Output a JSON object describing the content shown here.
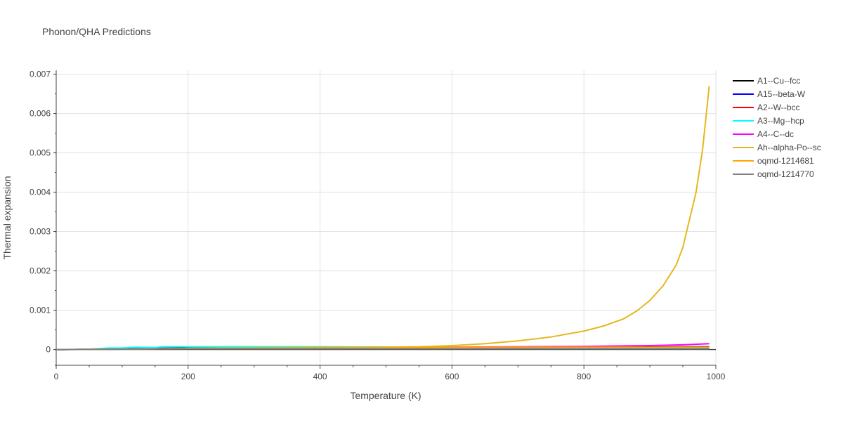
{
  "chart_data": {
    "type": "line",
    "title": "Phonon/QHA Predictions",
    "xlabel": "Temperature (K)",
    "ylabel": "Thermal expansion",
    "xlim": [
      0,
      1000
    ],
    "ylim": [
      -0.0004,
      0.0071
    ],
    "x_ticks": [
      0,
      200,
      400,
      600,
      800,
      1000
    ],
    "y_ticks": [
      0,
      0.001,
      0.002,
      0.003,
      0.004,
      0.005,
      0.006,
      0.007
    ],
    "x_tick_labels": [
      "0",
      "200",
      "400",
      "600",
      "800",
      "1000"
    ],
    "y_tick_labels": [
      "0",
      "0.001",
      "0.002",
      "0.003",
      "0.004",
      "0.005",
      "0.006",
      "0.007"
    ],
    "grid": true,
    "legend_position": "right",
    "series": [
      {
        "name": "A1--Cu--fcc",
        "color": "#000000",
        "x": [
          0,
          50,
          100,
          150,
          200,
          300,
          400,
          500,
          600,
          700,
          800,
          900,
          990
        ],
        "y": [
          0,
          5e-06,
          2e-05,
          3e-05,
          4e-05,
          4.5e-05,
          5e-05,
          5e-05,
          5.5e-05,
          6e-05,
          6e-05,
          6.5e-05,
          7e-05
        ]
      },
      {
        "name": "A15--beta-W",
        "color": "#0000ff",
        "x": [
          0,
          50,
          100,
          150,
          200,
          300,
          400,
          500,
          600,
          700,
          800,
          900,
          990
        ],
        "y": [
          0,
          3e-06,
          1.5e-05,
          2.5e-05,
          3e-05,
          3.5e-05,
          4e-05,
          4e-05,
          4.5e-05,
          5e-05,
          5e-05,
          5.5e-05,
          6e-05
        ]
      },
      {
        "name": "A2--W--bcc",
        "color": "#ff0000",
        "x": [
          0,
          50,
          100,
          150,
          200,
          300,
          400,
          500,
          600,
          700,
          800,
          900,
          990
        ],
        "y": [
          0,
          3e-06,
          1e-05,
          2e-05,
          2.5e-05,
          3e-05,
          3.5e-05,
          4e-05,
          4e-05,
          4.5e-05,
          5e-05,
          5e-05,
          5.5e-05
        ]
      },
      {
        "name": "A3--Mg--hcp",
        "color": "#00ffff",
        "x": [
          0,
          50,
          80,
          100,
          120,
          150,
          160,
          200,
          300,
          400,
          500,
          600,
          700,
          800,
          900,
          990
        ],
        "y": [
          0,
          8e-06,
          4e-05,
          4e-05,
          6e-05,
          5e-05,
          7e-05,
          7e-05,
          7e-05,
          7e-05,
          6.5e-05,
          6e-05,
          6e-05,
          5.5e-05,
          5e-05,
          5e-05
        ]
      },
      {
        "name": "A4--C--dc",
        "color": "#ff00ff",
        "x": [
          0,
          50,
          100,
          150,
          200,
          300,
          400,
          500,
          600,
          700,
          800,
          850,
          900,
          950,
          990
        ],
        "y": [
          0,
          3e-06,
          1e-05,
          1.5e-05,
          2e-05,
          3e-05,
          4e-05,
          5e-05,
          6e-05,
          7e-05,
          8e-05,
          9e-05,
          0.0001,
          0.00012,
          0.00015
        ]
      },
      {
        "name": "Ah--alpha-Po--sc",
        "color": "#e6b71e",
        "x": [
          0,
          100,
          200,
          300,
          400,
          500,
          550,
          600,
          650,
          700,
          750,
          800,
          830,
          860,
          880,
          900,
          920,
          940,
          950,
          960,
          970,
          980,
          990
        ],
        "y": [
          0,
          1e-05,
          3e-05,
          4e-05,
          5e-05,
          6e-05,
          7e-05,
          0.0001,
          0.00015,
          0.00022,
          0.00032,
          0.00047,
          0.0006,
          0.00078,
          0.00098,
          0.00125,
          0.00162,
          0.00215,
          0.0026,
          0.0033,
          0.004,
          0.0051,
          0.0067
        ]
      },
      {
        "name": "oqmd-1214681",
        "color": "#ffa500",
        "x": [
          0,
          100,
          200,
          300,
          400,
          500,
          600,
          700,
          800,
          900,
          990
        ],
        "y": [
          0,
          1e-05,
          3e-05,
          4e-05,
          5e-05,
          5e-05,
          5.5e-05,
          6e-05,
          6e-05,
          6e-05,
          6e-05
        ]
      },
      {
        "name": "oqmd-1214770",
        "color": "#808080",
        "x": [
          0,
          100,
          200,
          300,
          400,
          500,
          600,
          700,
          800,
          900,
          990
        ],
        "y": [
          0,
          1e-05,
          2e-05,
          2e-05,
          2e-05,
          2e-05,
          2e-05,
          2e-05,
          2e-05,
          2e-05,
          2e-05
        ]
      }
    ]
  }
}
